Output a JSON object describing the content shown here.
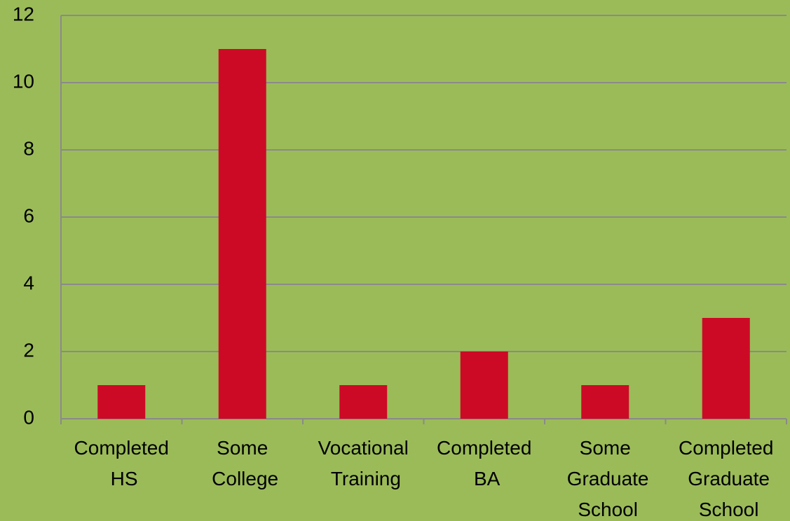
{
  "chart_data": {
    "type": "bar",
    "categories": [
      "Completed HS",
      "Some College",
      "Vocational Training",
      "Completed BA",
      "Some Graduate School",
      "Completed Graduate School"
    ],
    "values": [
      1,
      11,
      1,
      2,
      1,
      3
    ],
    "color": "#cc0a26",
    "ylim": [
      0,
      12
    ],
    "yticks": [
      0,
      2,
      4,
      6,
      8,
      10,
      12
    ],
    "grid": true
  }
}
